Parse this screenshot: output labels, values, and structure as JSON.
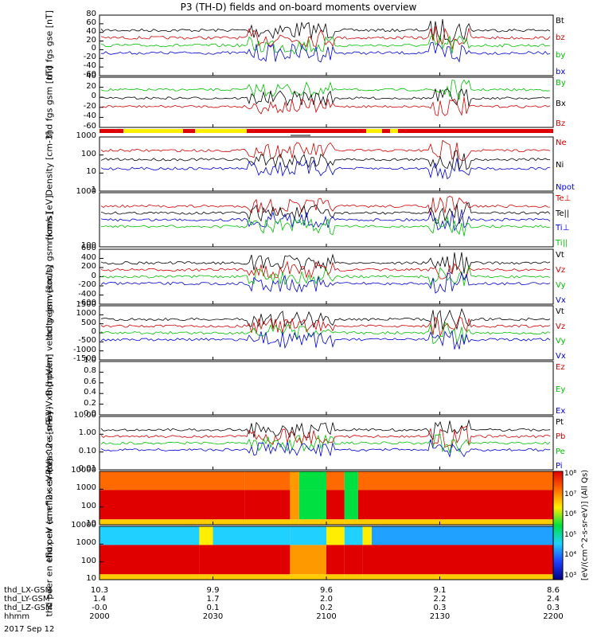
{
  "title": "P3 (TH-D) fields and on-board moments overview",
  "date": "2017 Sep 12",
  "x_rows": [
    {
      "label": "thd_LX-GSM",
      "values": [
        "10.3",
        "9.9",
        "9.6",
        "9.1",
        "8.6"
      ]
    },
    {
      "label": "thd_LY-GSM",
      "values": [
        "1.4",
        "1.7",
        "2.0",
        "2.2",
        "2.4"
      ]
    },
    {
      "label": "thd_LZ-GSM",
      "values": [
        "-0.0",
        "0.1",
        "0.2",
        "0.3",
        "0.3"
      ]
    },
    {
      "label": "hhmm",
      "values": [
        "2000",
        "2030",
        "2100",
        "2130",
        "2200"
      ]
    }
  ],
  "chart_data": [
    {
      "type": "line",
      "ylabel": "thd fgs gse [nT]",
      "ylim": [
        -60,
        80
      ],
      "ticks": [
        "80",
        "60",
        "40",
        "20",
        "0",
        "-20",
        "-40",
        "-60"
      ],
      "series": [
        {
          "name": "Bt",
          "color": "#000000"
        },
        {
          "name": "bz",
          "color": "#d00000"
        },
        {
          "name": "by",
          "color": "#00c000"
        },
        {
          "name": "bx",
          "color": "#0000d0"
        }
      ]
    },
    {
      "type": "line",
      "ylabel": "thd fgs gsm [nT]",
      "ylim": [
        -60,
        40
      ],
      "ticks": [
        "40",
        "20",
        "0",
        "-20",
        "-40",
        "-60"
      ],
      "series": [
        {
          "name": "By",
          "color": "#00c000"
        },
        {
          "name": "Bx",
          "color": "#000000"
        },
        {
          "name": "Bz",
          "color": "#d00000"
        }
      ]
    },
    {
      "type": "line",
      "ylabel": "Density [cm-3]",
      "scale": "log",
      "ticks": [
        "1000",
        "100",
        "10",
        "1"
      ],
      "series": [
        {
          "name": "Ne",
          "color": "#d00000"
        },
        {
          "name": "Ni",
          "color": "#000000"
        },
        {
          "name": "Npot",
          "color": "#0000d0"
        }
      ]
    },
    {
      "type": "line",
      "ylabel": "moms [eV]",
      "scale": "log",
      "ticks": [
        "1000",
        "100"
      ],
      "series": [
        {
          "name": "Te⊥",
          "color": "#d00000"
        },
        {
          "name": "Te||",
          "color": "#000000"
        },
        {
          "name": "Ti⊥",
          "color": "#0000d0"
        },
        {
          "name": "Ti||",
          "color": "#00c000"
        }
      ]
    },
    {
      "type": "line",
      "ylabel": "thd peim velocity gsm [km/s]",
      "ylim": [
        -600,
        600
      ],
      "ticks": [
        "600",
        "400",
        "200",
        "0",
        "-200",
        "-400",
        "-600"
      ],
      "series": [
        {
          "name": "Vt",
          "color": "#000000"
        },
        {
          "name": "Vz",
          "color": "#d00000"
        },
        {
          "name": "Vy",
          "color": "#00c000"
        },
        {
          "name": "Vx",
          "color": "#0000d0"
        }
      ]
    },
    {
      "type": "line",
      "ylabel": "thd peem velocity gsm [km/s]",
      "ylim": [
        -1500,
        1500
      ],
      "ticks": [
        "1500",
        "1000",
        "500",
        "0",
        "-500",
        "-1000",
        "-1500"
      ],
      "series": [
        {
          "name": "Vt",
          "color": "#000000"
        },
        {
          "name": "Vz",
          "color": "#d00000"
        },
        {
          "name": "Vy",
          "color": "#00c000"
        },
        {
          "name": "Vx",
          "color": "#0000d0"
        }
      ]
    },
    {
      "type": "line",
      "ylabel": "E=-VxB [mV/m]",
      "ylim": [
        0,
        1
      ],
      "ticks": [
        "1.0",
        "0.8",
        "0.6",
        "0.4",
        "0.2",
        "0.0"
      ],
      "series": [
        {
          "name": "Ez",
          "color": "#d00000"
        },
        {
          "name": "Ey",
          "color": "#00c000"
        },
        {
          "name": "Ex",
          "color": "#0000d0"
        }
      ]
    },
    {
      "type": "line",
      "ylabel": "Pressure [nPa]",
      "scale": "log",
      "ticks": [
        "10.00",
        "1.00",
        "0.10",
        "0.01"
      ],
      "series": [
        {
          "name": "Pt",
          "color": "#000000"
        },
        {
          "name": "Pb",
          "color": "#d00000"
        },
        {
          "name": "Pe",
          "color": "#00c000"
        },
        {
          "name": "Pi",
          "color": "#0000d0"
        }
      ]
    },
    {
      "type": "heatmap",
      "ylabel": "thd peir en eflux eV (cm^2-s-sr-eV)",
      "scale": "log",
      "ticks": [
        "10000",
        "1000",
        "100",
        "10"
      ]
    },
    {
      "type": "heatmap",
      "ylabel": "thd peer en eflux eV (cm^2-s-sr-eV)",
      "scale": "log",
      "ticks": [
        "10000",
        "1000",
        "100",
        "10"
      ]
    }
  ],
  "colorbar": {
    "label": "[eV/(cm^2-s-sr-eV)] (All Qs)",
    "ticks": [
      "10⁸",
      "10⁷",
      "10⁶",
      "10⁵",
      "10⁴",
      "10³"
    ]
  }
}
